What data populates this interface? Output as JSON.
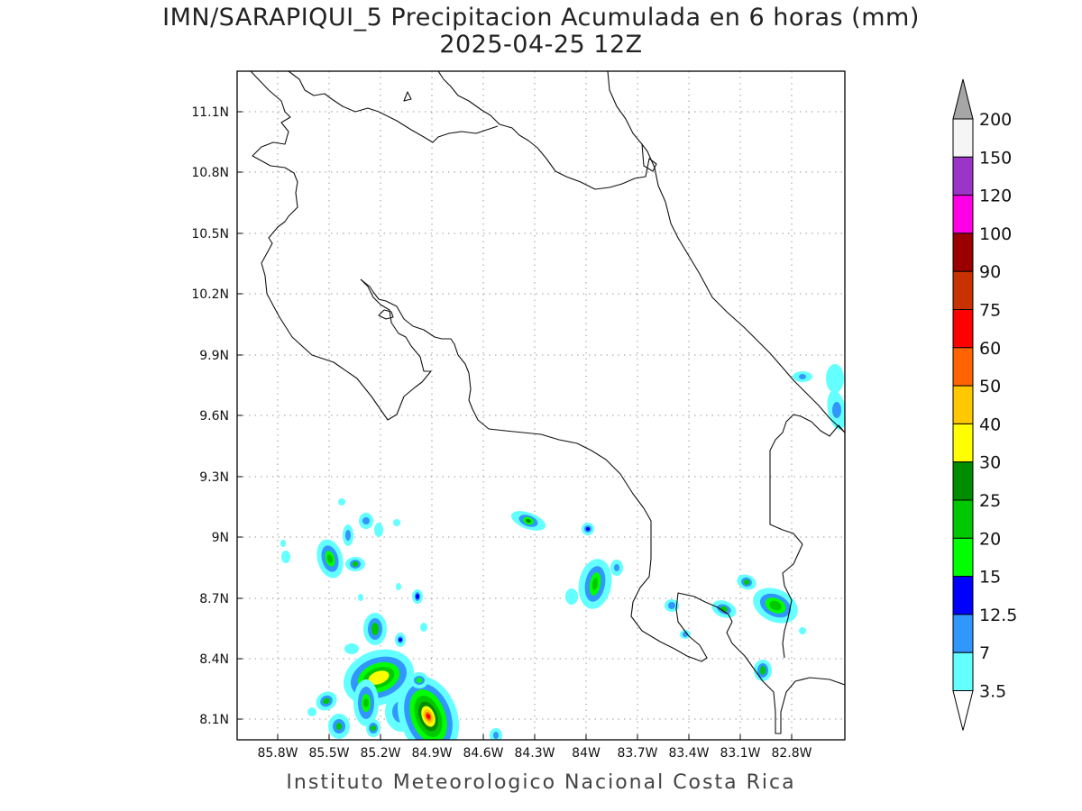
{
  "title_line1": "IMN/SARAPIQUI_5 Precipitacion Acumulada en 6 horas (mm)",
  "title_line2": "2025-04-25 12Z",
  "footer": "Instituto Meteorologico Nacional Costa Rica",
  "map": {
    "lon_range": [
      -86.05,
      -83.05
    ],
    "lat_range": [
      8.0,
      11.3
    ],
    "lon_ticks": [
      "85.8W",
      "85.5W",
      "85.2W",
      "84.9W",
      "84.6W",
      "84.3W",
      "84W",
      "83.7W",
      "83.4W",
      "83.1W",
      "82.8W"
    ],
    "lat_ticks": [
      "11.1N",
      "10.8N",
      "10.5N",
      "10.2N",
      "9.9N",
      "9.6N",
      "9.3N",
      "9N",
      "8.7N",
      "8.4N",
      "8.1N"
    ],
    "grid": "dotted"
  },
  "colorbar": {
    "labels": [
      "200",
      "150",
      "120",
      "100",
      "90",
      "75",
      "60",
      "50",
      "40",
      "30",
      "25",
      "20",
      "15",
      "12.5",
      "7",
      "3.5"
    ],
    "colors": [
      "#a6a6a6",
      "#f5f5f5",
      "#9b35c8",
      "#ff00e6",
      "#9b0000",
      "#c83200",
      "#ff0000",
      "#ff6400",
      "#ffc800",
      "#ffff00",
      "#008c00",
      "#00c800",
      "#00ff00",
      "#0000ff",
      "#3296ff",
      "#64ffff",
      "#ffffff"
    ]
  }
}
